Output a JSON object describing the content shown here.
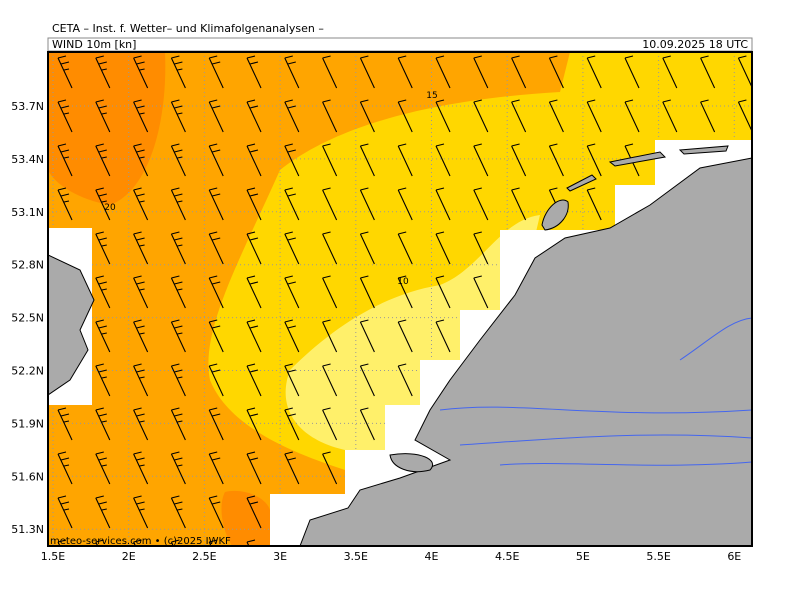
{
  "header": {
    "title": "CETA – Inst. f. Wetter– und Klimafolgenanalysen –",
    "product": "WIND 10m [kn]",
    "valid": "10.09.2025 18 UTC"
  },
  "axes": {
    "lat": [
      "53.7N",
      "53.4N",
      "53.1N",
      "52.8N",
      "52.5N",
      "52.2N",
      "51.9N",
      "51.6N",
      "51.3N"
    ],
    "lon": [
      "1.5E",
      "2E",
      "2.5E",
      "3E",
      "3.5E",
      "4E",
      "4.5E",
      "5E",
      "5.5E",
      "6E"
    ]
  },
  "contours": {
    "labels": [
      "15",
      "20",
      "10"
    ]
  },
  "credit": "meteo-services.com • (c)2025 IWKF"
}
